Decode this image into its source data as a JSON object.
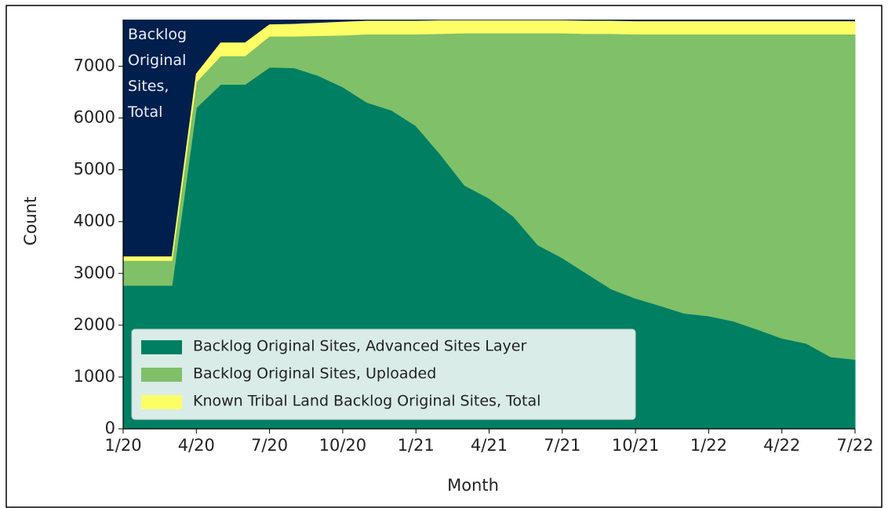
{
  "chart_data": {
    "type": "stacked_area",
    "annotation": "Backlog Original Sites, Total",
    "background_color": "#001f4d",
    "xlabel": "Month",
    "ylabel": "Count",
    "categories": [
      "1/20",
      null,
      null,
      "4/20",
      null,
      null,
      "7/20",
      null,
      null,
      "10/20",
      null,
      null,
      "1/21",
      null,
      null,
      "4/21",
      null,
      null,
      "7/21",
      null,
      null,
      "10/21",
      null,
      null,
      "1/22",
      null,
      null,
      "4/22",
      null,
      null,
      "7/22"
    ],
    "series": [
      {
        "name": "Backlog Original Sites, Advanced Sites Layer",
        "color": "#007f62",
        "values": [
          2770,
          2770,
          2770,
          6200,
          6650,
          6650,
          6980,
          6970,
          6820,
          6600,
          6300,
          6150,
          5850,
          5300,
          4700,
          4450,
          4100,
          3550,
          3300,
          3000,
          2700,
          2520,
          2380,
          2230,
          2180,
          2080,
          1920,
          1750,
          1650,
          1390,
          1340
        ]
      },
      {
        "name": "Backlog Original Sites, Uploaded",
        "color": "#80c068",
        "values": [
          480,
          480,
          480,
          500,
          550,
          550,
          600,
          610,
          770,
          1000,
          1320,
          1470,
          1770,
          2330,
          2940,
          3190,
          3540,
          4090,
          4340,
          4630,
          4930,
          5100,
          5240,
          5390,
          5440,
          5540,
          5700,
          5870,
          5970,
          6230,
          6280
        ]
      },
      {
        "name": "Known Tribal Land Backlog Original Sites, Total",
        "color": "#fdfd66",
        "values": [
          70,
          70,
          70,
          150,
          250,
          250,
          220,
          230,
          240,
          250,
          250,
          250,
          250,
          250,
          240,
          240,
          240,
          240,
          240,
          240,
          240,
          240,
          240,
          240,
          240,
          240,
          240,
          240,
          240,
          240,
          240
        ]
      }
    ],
    "ylim": [
      0,
      7900
    ],
    "yticks": [
      0,
      1000,
      2000,
      3000,
      4000,
      5000,
      6000,
      7000
    ],
    "legend": "lower left"
  }
}
